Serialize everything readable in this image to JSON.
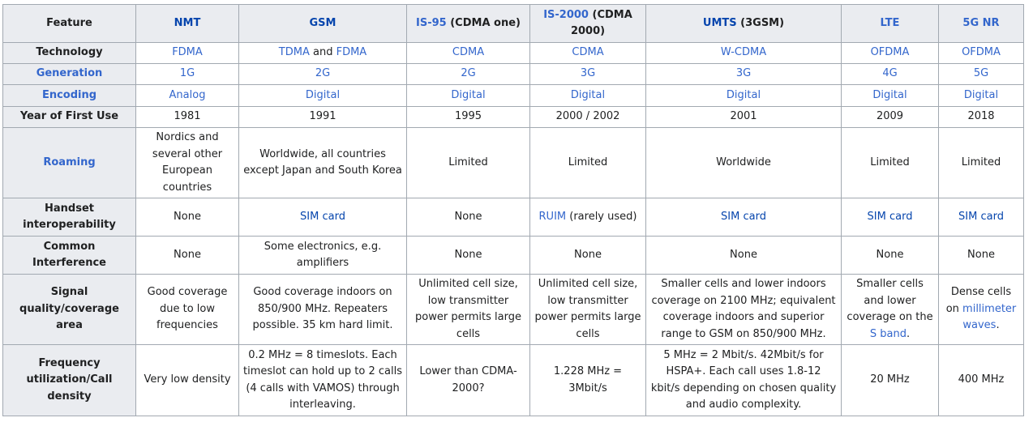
{
  "columns": [
    {
      "link": "",
      "text": "Feature",
      "visited": false
    },
    {
      "link": "NMT",
      "text": "",
      "visited": true
    },
    {
      "link": "GSM",
      "text": "",
      "visited": true
    },
    {
      "link": "IS-95",
      "text": " (CDMA one)",
      "visited": false
    },
    {
      "link": "IS-2000",
      "text": " (CDMA 2000)",
      "visited": false
    },
    {
      "link": "UMTS",
      "text": " (3GSM)",
      "visited": true
    },
    {
      "link": "LTE",
      "text": "",
      "visited": false
    },
    {
      "link": "5G NR",
      "text": "",
      "visited": false
    }
  ],
  "rows": [
    {
      "feature": {
        "text": "Technology",
        "link": false
      },
      "cells": [
        [
          {
            "t": "FDMA",
            "link": true
          }
        ],
        [
          {
            "t": "TDMA",
            "link": true
          },
          {
            "t": " and "
          },
          {
            "t": "FDMA",
            "link": true
          }
        ],
        [
          {
            "t": "CDMA",
            "link": true
          }
        ],
        [
          {
            "t": "CDMA",
            "link": true
          }
        ],
        [
          {
            "t": "W-CDMA",
            "link": true
          }
        ],
        [
          {
            "t": "OFDMA",
            "link": true
          }
        ],
        [
          {
            "t": "OFDMA",
            "link": true
          }
        ]
      ]
    },
    {
      "feature": {
        "text": "Generation",
        "link": true
      },
      "cells": [
        [
          {
            "t": "1G",
            "link": true
          }
        ],
        [
          {
            "t": "2G",
            "link": true
          }
        ],
        [
          {
            "t": "2G",
            "link": true
          }
        ],
        [
          {
            "t": "3G",
            "link": true
          }
        ],
        [
          {
            "t": "3G",
            "link": true
          }
        ],
        [
          {
            "t": "4G",
            "link": true
          }
        ],
        [
          {
            "t": "5G",
            "link": true
          }
        ]
      ]
    },
    {
      "feature": {
        "text": "Encoding",
        "link": true
      },
      "cells": [
        [
          {
            "t": "Analog",
            "link": true
          }
        ],
        [
          {
            "t": "Digital",
            "link": true
          }
        ],
        [
          {
            "t": "Digital",
            "link": true
          }
        ],
        [
          {
            "t": "Digital",
            "link": true
          }
        ],
        [
          {
            "t": "Digital",
            "link": true
          }
        ],
        [
          {
            "t": "Digital",
            "link": true
          }
        ],
        [
          {
            "t": "Digital",
            "link": true
          }
        ]
      ]
    },
    {
      "feature": {
        "text": "Year of First Use",
        "link": false
      },
      "cells": [
        [
          {
            "t": "1981"
          }
        ],
        [
          {
            "t": "1991"
          }
        ],
        [
          {
            "t": "1995"
          }
        ],
        [
          {
            "t": "2000 / 2002"
          }
        ],
        [
          {
            "t": "2001"
          }
        ],
        [
          {
            "t": "2009"
          }
        ],
        [
          {
            "t": "2018"
          }
        ]
      ]
    },
    {
      "feature": {
        "text": "Roaming",
        "link": true
      },
      "cells": [
        [
          {
            "t": "Nordics and several other European countries"
          }
        ],
        [
          {
            "t": "Worldwide, all countries except Japan and South Korea"
          }
        ],
        [
          {
            "t": "Limited"
          }
        ],
        [
          {
            "t": "Limited"
          }
        ],
        [
          {
            "t": "Worldwide"
          }
        ],
        [
          {
            "t": "Limited"
          }
        ],
        [
          {
            "t": "Limited"
          }
        ]
      ]
    },
    {
      "feature": {
        "text": "Handset interoperability",
        "link": false
      },
      "cells": [
        [
          {
            "t": "None"
          }
        ],
        [
          {
            "t": "SIM card",
            "link": true,
            "visited": true
          }
        ],
        [
          {
            "t": "None"
          }
        ],
        [
          {
            "t": "RUIM",
            "link": true
          },
          {
            "t": " (rarely used)"
          }
        ],
        [
          {
            "t": "SIM card",
            "link": true,
            "visited": true
          }
        ],
        [
          {
            "t": "SIM card",
            "link": true,
            "visited": true
          }
        ],
        [
          {
            "t": "SIM card",
            "link": true,
            "visited": true
          }
        ]
      ]
    },
    {
      "feature": {
        "text": "Common Interference",
        "link": false
      },
      "cells": [
        [
          {
            "t": "None"
          }
        ],
        [
          {
            "t": "Some electronics, e.g. amplifiers"
          }
        ],
        [
          {
            "t": "None"
          }
        ],
        [
          {
            "t": "None"
          }
        ],
        [
          {
            "t": "None"
          }
        ],
        [
          {
            "t": "None"
          }
        ],
        [
          {
            "t": "None"
          }
        ]
      ]
    },
    {
      "feature": {
        "text": "Signal quality/coverage area",
        "link": false
      },
      "cells": [
        [
          {
            "t": "Good coverage due to low frequencies"
          }
        ],
        [
          {
            "t": "Good coverage indoors on 850/900 MHz. Repeaters possible. 35 km hard limit."
          }
        ],
        [
          {
            "t": "Unlimited cell size, low transmitter power permits large cells"
          }
        ],
        [
          {
            "t": "Unlimited cell size, low transmitter power permits large cells"
          }
        ],
        [
          {
            "t": "Smaller cells and lower indoors coverage on 2100 MHz; equivalent coverage indoors and superior range to GSM on 850/900 MHz."
          }
        ],
        [
          {
            "t": "Smaller cells and lower coverage on the "
          },
          {
            "t": "S band",
            "link": true
          },
          {
            "t": "."
          }
        ],
        [
          {
            "t": "Dense cells on "
          },
          {
            "t": "millimeter waves",
            "link": true
          },
          {
            "t": "."
          }
        ]
      ]
    },
    {
      "feature": {
        "text": "Frequency utilization/Call density",
        "link": false
      },
      "cells": [
        [
          {
            "t": "Very low density"
          }
        ],
        [
          {
            "t": "0.2 MHz = 8 timeslots. Each timeslot can hold up to 2 calls (4 calls with VAMOS) through interleaving."
          }
        ],
        [
          {
            "t": "Lower than CDMA-2000?"
          }
        ],
        [
          {
            "t": "1.228  MHz = 3Mbit/s"
          }
        ],
        [
          {
            "t": "5 MHz = 2 Mbit/s. 42Mbit/s for HSPA+. Each call uses 1.8-12 kbit/s depending on chosen quality and audio complexity."
          }
        ],
        [
          {
            "t": "20 MHz"
          }
        ],
        [
          {
            "t": "400 MHz"
          }
        ]
      ]
    }
  ]
}
